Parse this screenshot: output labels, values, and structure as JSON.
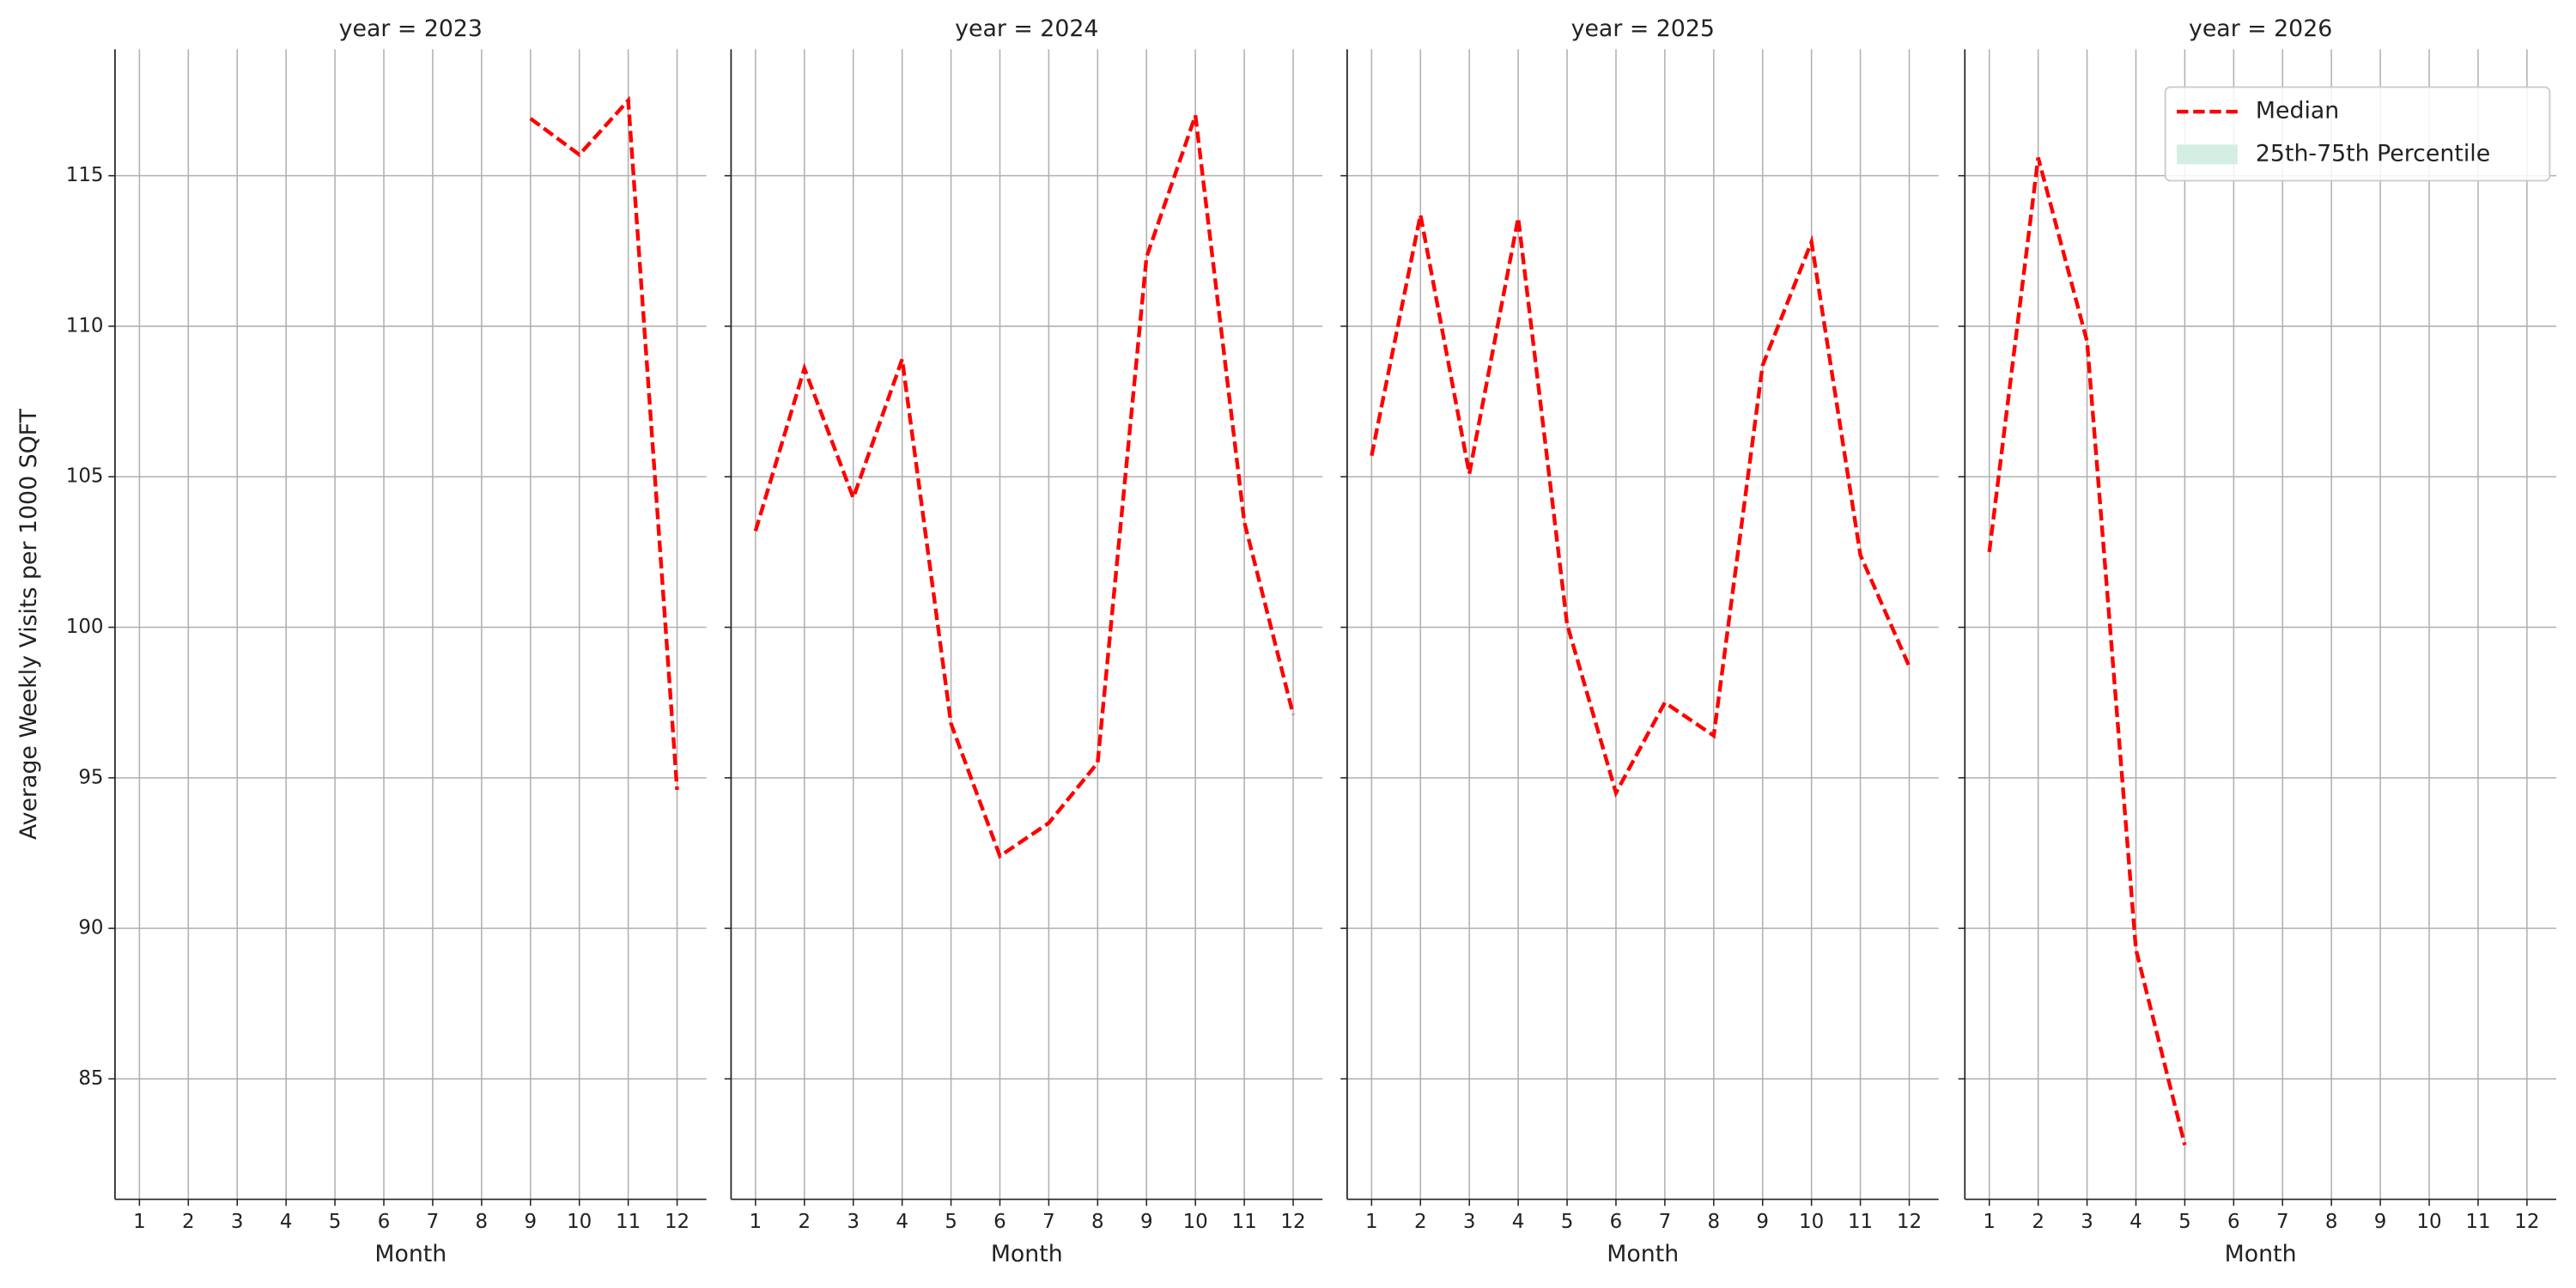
{
  "chart_data": [
    {
      "type": "line",
      "title": "year = 2023",
      "xlabel": "Month",
      "ylabel": "Average Weekly Visits per 1000 SQFT",
      "x": [
        1,
        2,
        3,
        4,
        5,
        6,
        7,
        8,
        9,
        10,
        11,
        12
      ],
      "xticks": [
        1,
        2,
        3,
        4,
        5,
        6,
        7,
        8,
        9,
        10,
        11,
        12
      ],
      "xlim": [
        0.5,
        12.6
      ],
      "ylim": [
        81,
        119.2
      ],
      "yticks": [
        85,
        90,
        95,
        100,
        105,
        110,
        115
      ],
      "show_ytick_labels": true,
      "grid": true,
      "series": [
        {
          "name": "Median",
          "color": "#ff0000",
          "values": [
            null,
            null,
            null,
            null,
            null,
            null,
            null,
            null,
            116.9,
            115.7,
            117.5,
            94.6
          ]
        }
      ]
    },
    {
      "type": "line",
      "title": "year = 2024",
      "xlabel": "Month",
      "x": [
        1,
        2,
        3,
        4,
        5,
        6,
        7,
        8,
        9,
        10,
        11,
        12
      ],
      "xticks": [
        1,
        2,
        3,
        4,
        5,
        6,
        7,
        8,
        9,
        10,
        11,
        12
      ],
      "xlim": [
        0.5,
        12.6
      ],
      "ylim": [
        81,
        119.2
      ],
      "yticks": [
        85,
        90,
        95,
        100,
        105,
        110,
        115
      ],
      "show_ytick_labels": false,
      "grid": true,
      "series": [
        {
          "name": "Median",
          "color": "#ff0000",
          "values": [
            103.2,
            108.6,
            104.3,
            108.9,
            96.8,
            92.4,
            93.5,
            95.5,
            112.3,
            117.0,
            103.5,
            97.1
          ]
        }
      ]
    },
    {
      "type": "line",
      "title": "year = 2025",
      "xlabel": "Month",
      "x": [
        1,
        2,
        3,
        4,
        5,
        6,
        7,
        8,
        9,
        10,
        11,
        12
      ],
      "xticks": [
        1,
        2,
        3,
        4,
        5,
        6,
        7,
        8,
        9,
        10,
        11,
        12
      ],
      "xlim": [
        0.5,
        12.6
      ],
      "ylim": [
        81,
        119.2
      ],
      "yticks": [
        85,
        90,
        95,
        100,
        105,
        110,
        115
      ],
      "show_ytick_labels": false,
      "grid": true,
      "series": [
        {
          "name": "Median",
          "color": "#ff0000",
          "values": [
            105.7,
            113.7,
            105.1,
            113.6,
            100.1,
            94.5,
            97.5,
            96.4,
            108.7,
            112.8,
            102.4,
            98.7
          ]
        }
      ]
    },
    {
      "type": "line",
      "title": "year = 2026",
      "xlabel": "Month",
      "x": [
        1,
        2,
        3,
        4,
        5,
        6,
        7,
        8,
        9,
        10,
        11,
        12
      ],
      "xticks": [
        1,
        2,
        3,
        4,
        5,
        6,
        7,
        8,
        9,
        10,
        11,
        12
      ],
      "xlim": [
        0.5,
        12.6
      ],
      "ylim": [
        81,
        119.2
      ],
      "yticks": [
        85,
        90,
        95,
        100,
        105,
        110,
        115
      ],
      "show_ytick_labels": false,
      "grid": true,
      "series": [
        {
          "name": "Median",
          "color": "#ff0000",
          "values": [
            102.5,
            115.6,
            109.5,
            89.3,
            82.8,
            null,
            null,
            null,
            null,
            null,
            null,
            null
          ]
        }
      ],
      "legend": [
        {
          "label": "Median",
          "color": "#ff0000",
          "style": "dashed"
        },
        {
          "label": "25th-75th Percentile",
          "color": "#d5eee4",
          "style": "patch"
        }
      ]
    }
  ]
}
